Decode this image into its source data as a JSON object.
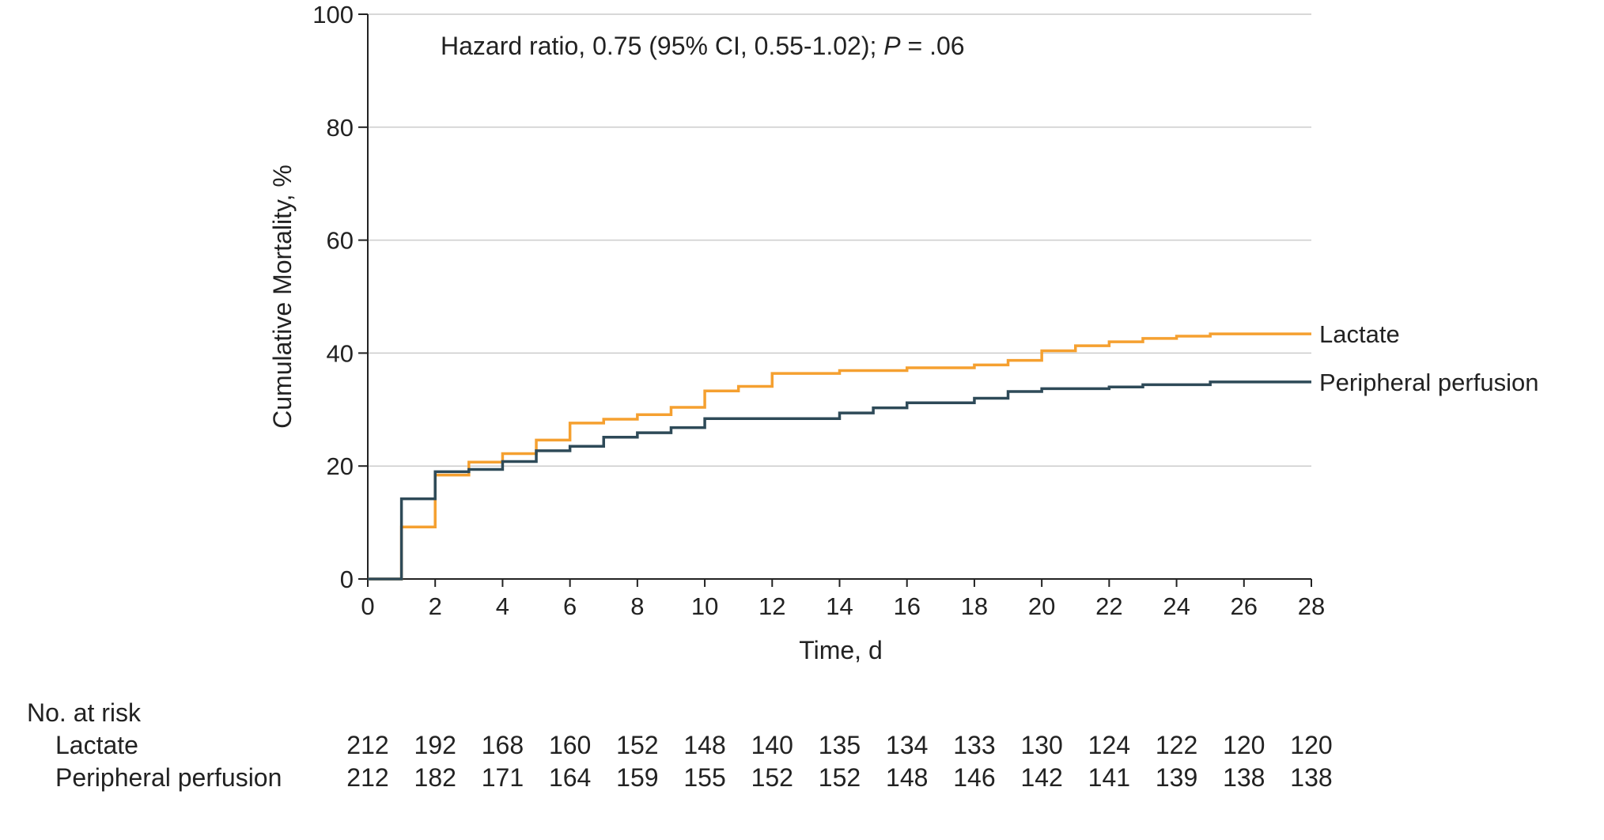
{
  "chart_data": {
    "type": "line",
    "annotation": {
      "prefix": "Hazard ratio, 0.75 (95% CI, 0.55-1.02); ",
      "p_label": "P",
      "p_value": " = .06"
    },
    "xlabel": "Time, d",
    "ylabel": "Cumulative Mortality, %",
    "xlim": [
      0,
      28
    ],
    "ylim": [
      0,
      100
    ],
    "x_ticks": [
      0,
      2,
      4,
      6,
      8,
      10,
      12,
      14,
      16,
      18,
      20,
      22,
      24,
      26,
      28
    ],
    "y_ticks": [
      0,
      20,
      40,
      60,
      80,
      100
    ],
    "grid": "horizontal",
    "colors": {
      "Lactate": "#F5A030",
      "Peripheral perfusion": "#2E4A58",
      "grid": "#cccccc",
      "axis": "#222222"
    },
    "series": [
      {
        "name": "Lactate",
        "step_x": [
          0,
          1,
          2,
          3,
          4,
          5,
          6,
          7,
          8,
          9,
          10,
          11,
          12,
          14,
          16,
          18,
          19,
          20,
          21,
          22,
          23,
          24,
          25,
          28
        ],
        "step_y": [
          0,
          9.2,
          18.4,
          20.7,
          22.2,
          24.6,
          27.6,
          28.3,
          29.1,
          30.4,
          33.3,
          34.1,
          36.4,
          36.9,
          37.4,
          37.9,
          38.7,
          40.4,
          41.3,
          42.0,
          42.6,
          43.0,
          43.4,
          43.4
        ]
      },
      {
        "name": "Peripheral perfusion",
        "step_x": [
          0,
          1,
          2,
          3,
          4,
          5,
          6,
          7,
          8,
          9,
          10,
          14,
          15,
          16,
          18,
          19,
          20,
          22,
          23,
          25,
          28
        ],
        "step_y": [
          0,
          14.2,
          19.0,
          19.4,
          20.8,
          22.7,
          23.5,
          25.1,
          25.9,
          26.8,
          28.4,
          29.4,
          30.3,
          31.2,
          32.0,
          33.2,
          33.7,
          34.0,
          34.4,
          34.9,
          34.9
        ]
      }
    ],
    "risk_table": {
      "title": "No. at risk",
      "rows": [
        {
          "label": "Lactate",
          "values": [
            212,
            192,
            168,
            160,
            152,
            148,
            140,
            135,
            134,
            133,
            130,
            124,
            122,
            120,
            120
          ]
        },
        {
          "label": "Peripheral perfusion",
          "values": [
            212,
            182,
            171,
            164,
            159,
            155,
            152,
            152,
            148,
            146,
            142,
            141,
            139,
            138,
            138
          ]
        }
      ]
    }
  }
}
